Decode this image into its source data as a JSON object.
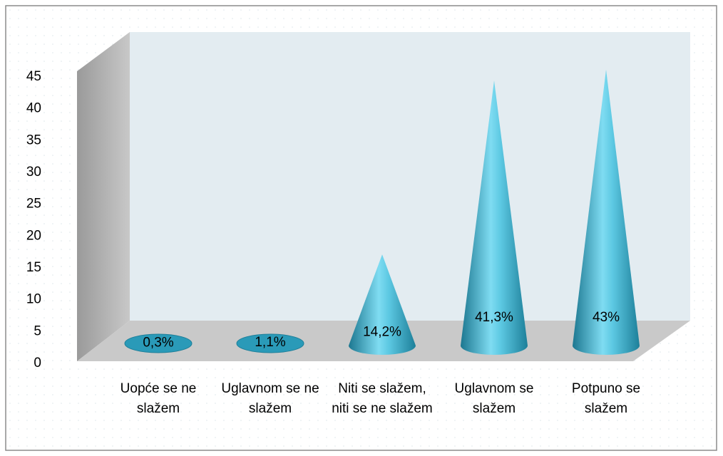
{
  "chart_data": {
    "type": "cone",
    "categories": [
      "Uopće se ne slažem",
      "Uglavnom se ne slažem",
      "Niti se slažem, niti se ne slažem",
      "Uglavnom se slažem",
      "Potpuno se slažem"
    ],
    "values": [
      0.3,
      1.1,
      14.2,
      41.3,
      43
    ],
    "value_labels": [
      "0,3%",
      "1,1%",
      "14,2%",
      "41,3%",
      "43%"
    ],
    "color": "#2a9ab8",
    "ylim": [
      0,
      45
    ],
    "yticks": [
      0,
      5,
      10,
      15,
      20,
      25,
      30,
      35,
      40,
      45
    ]
  }
}
